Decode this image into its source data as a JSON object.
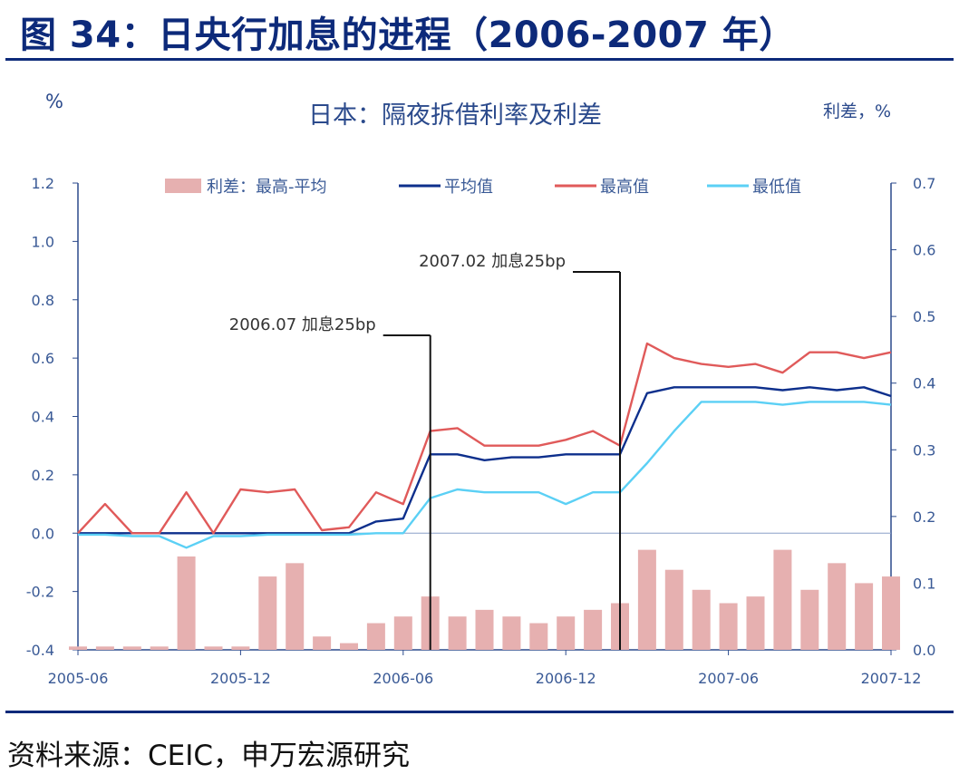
{
  "figure_title": "图 34：日央行加息的进程（2006-2007 年）",
  "source": "资料来源：CEIC，申万宏源研究",
  "colors": {
    "spread": "#e6b0b0",
    "avg": "#0d2f8c",
    "high": "#e05a5a",
    "low": "#5bd0f5",
    "axis": "#2b4a8c",
    "rule": "#0d2a7a"
  },
  "chart_data": {
    "type": "line",
    "title": "日本：隔夜拆借利率及利差",
    "ylabel": "%",
    "y2label": "利差，%",
    "ylim": [
      -0.4,
      1.2
    ],
    "y2lim": [
      0.0,
      0.7
    ],
    "yticks": [
      "1.2",
      "1.0",
      "0.8",
      "0.6",
      "0.4",
      "0.2",
      "0.0",
      "-0.2",
      "-0.4"
    ],
    "y2ticks": [
      "0.7",
      "0.6",
      "0.5",
      "0.4",
      "0.3",
      "0.2",
      "0.1",
      "0.0"
    ],
    "xticks": [
      "2005-06",
      "2005-12",
      "2006-06",
      "2006-12",
      "2007-06",
      "2007-12"
    ],
    "legend_position": "top",
    "series": [
      {
        "name": "利差：最高-平均",
        "kind": "bar",
        "axis": "right",
        "color": "#e6b0b0",
        "points": [
          [
            "2005-06",
            0.005
          ],
          [
            "2005-07",
            0.005
          ],
          [
            "2005-08",
            0.005
          ],
          [
            "2005-09",
            0.005
          ],
          [
            "2005-10",
            0.14
          ],
          [
            "2005-11",
            0.005
          ],
          [
            "2005-12",
            0.005
          ],
          [
            "2006-01",
            0.11
          ],
          [
            "2006-02",
            0.13
          ],
          [
            "2006-03",
            0.02
          ],
          [
            "2006-04",
            0.01
          ],
          [
            "2006-05",
            0.04
          ],
          [
            "2006-06",
            0.05
          ],
          [
            "2006-07",
            0.08
          ],
          [
            "2006-08",
            0.05
          ],
          [
            "2006-09",
            0.06
          ],
          [
            "2006-10",
            0.05
          ],
          [
            "2006-11",
            0.04
          ],
          [
            "2006-12",
            0.05
          ],
          [
            "2007-01",
            0.06
          ],
          [
            "2007-02",
            0.07
          ],
          [
            "2007-03",
            0.15
          ],
          [
            "2007-04",
            0.12
          ],
          [
            "2007-05",
            0.09
          ],
          [
            "2007-06",
            0.07
          ],
          [
            "2007-07",
            0.08
          ],
          [
            "2007-08",
            0.15
          ],
          [
            "2007-09",
            0.09
          ],
          [
            "2007-10",
            0.13
          ],
          [
            "2007-11",
            0.1
          ],
          [
            "2007-12",
            0.11
          ]
        ]
      },
      {
        "name": "平均值",
        "kind": "line",
        "axis": "left",
        "color": "#0d2f8c",
        "points": [
          [
            "2005-06",
            0.0
          ],
          [
            "2005-07",
            0.0
          ],
          [
            "2005-08",
            0.0
          ],
          [
            "2005-09",
            0.0
          ],
          [
            "2005-10",
            0.0
          ],
          [
            "2005-11",
            0.0
          ],
          [
            "2005-12",
            0.0
          ],
          [
            "2006-01",
            0.0
          ],
          [
            "2006-02",
            0.0
          ],
          [
            "2006-03",
            0.0
          ],
          [
            "2006-04",
            0.0
          ],
          [
            "2006-05",
            0.04
          ],
          [
            "2006-06",
            0.05
          ],
          [
            "2006-07",
            0.27
          ],
          [
            "2006-08",
            0.27
          ],
          [
            "2006-09",
            0.25
          ],
          [
            "2006-10",
            0.26
          ],
          [
            "2006-11",
            0.26
          ],
          [
            "2006-12",
            0.27
          ],
          [
            "2007-01",
            0.27
          ],
          [
            "2007-02",
            0.27
          ],
          [
            "2007-03",
            0.48
          ],
          [
            "2007-04",
            0.5
          ],
          [
            "2007-05",
            0.5
          ],
          [
            "2007-06",
            0.5
          ],
          [
            "2007-07",
            0.5
          ],
          [
            "2007-08",
            0.49
          ],
          [
            "2007-09",
            0.5
          ],
          [
            "2007-10",
            0.49
          ],
          [
            "2007-11",
            0.5
          ],
          [
            "2007-12",
            0.47
          ]
        ]
      },
      {
        "name": "最高值",
        "kind": "line",
        "axis": "left",
        "color": "#e05a5a",
        "points": [
          [
            "2005-06",
            0.0
          ],
          [
            "2005-07",
            0.1
          ],
          [
            "2005-08",
            0.0
          ],
          [
            "2005-09",
            0.0
          ],
          [
            "2005-10",
            0.14
          ],
          [
            "2005-11",
            0.0
          ],
          [
            "2005-12",
            0.15
          ],
          [
            "2006-01",
            0.14
          ],
          [
            "2006-02",
            0.15
          ],
          [
            "2006-03",
            0.01
          ],
          [
            "2006-04",
            0.02
          ],
          [
            "2006-05",
            0.14
          ],
          [
            "2006-06",
            0.1
          ],
          [
            "2006-07",
            0.35
          ],
          [
            "2006-08",
            0.36
          ],
          [
            "2006-09",
            0.3
          ],
          [
            "2006-10",
            0.3
          ],
          [
            "2006-11",
            0.3
          ],
          [
            "2006-12",
            0.32
          ],
          [
            "2007-01",
            0.35
          ],
          [
            "2007-02",
            0.3
          ],
          [
            "2007-03",
            0.65
          ],
          [
            "2007-04",
            0.6
          ],
          [
            "2007-05",
            0.58
          ],
          [
            "2007-06",
            0.57
          ],
          [
            "2007-07",
            0.58
          ],
          [
            "2007-08",
            0.55
          ],
          [
            "2007-09",
            0.62
          ],
          [
            "2007-10",
            0.62
          ],
          [
            "2007-11",
            0.6
          ],
          [
            "2007-12",
            0.62
          ]
        ]
      },
      {
        "name": "最低值",
        "kind": "line",
        "axis": "left",
        "color": "#5bd0f5",
        "points": [
          [
            "2005-06",
            -0.005
          ],
          [
            "2005-07",
            -0.005
          ],
          [
            "2005-08",
            -0.01
          ],
          [
            "2005-09",
            -0.01
          ],
          [
            "2005-10",
            -0.05
          ],
          [
            "2005-11",
            -0.01
          ],
          [
            "2005-12",
            -0.01
          ],
          [
            "2006-01",
            -0.005
          ],
          [
            "2006-02",
            -0.005
          ],
          [
            "2006-03",
            -0.005
          ],
          [
            "2006-04",
            -0.005
          ],
          [
            "2006-05",
            0.0
          ],
          [
            "2006-06",
            0.0
          ],
          [
            "2006-07",
            0.12
          ],
          [
            "2006-08",
            0.15
          ],
          [
            "2006-09",
            0.14
          ],
          [
            "2006-10",
            0.14
          ],
          [
            "2006-11",
            0.14
          ],
          [
            "2006-12",
            0.1
          ],
          [
            "2007-01",
            0.14
          ],
          [
            "2007-02",
            0.14
          ],
          [
            "2007-03",
            0.24
          ],
          [
            "2007-04",
            0.35
          ],
          [
            "2007-05",
            0.45
          ],
          [
            "2007-06",
            0.45
          ],
          [
            "2007-07",
            0.45
          ],
          [
            "2007-08",
            0.44
          ],
          [
            "2007-09",
            0.45
          ],
          [
            "2007-10",
            0.45
          ],
          [
            "2007-11",
            0.45
          ],
          [
            "2007-12",
            0.44
          ]
        ]
      }
    ],
    "annotations": [
      {
        "text": "2006.07 加息25bp",
        "date": "2006-07"
      },
      {
        "text": "2007.02 加息25bp",
        "date": "2007-02"
      }
    ]
  }
}
